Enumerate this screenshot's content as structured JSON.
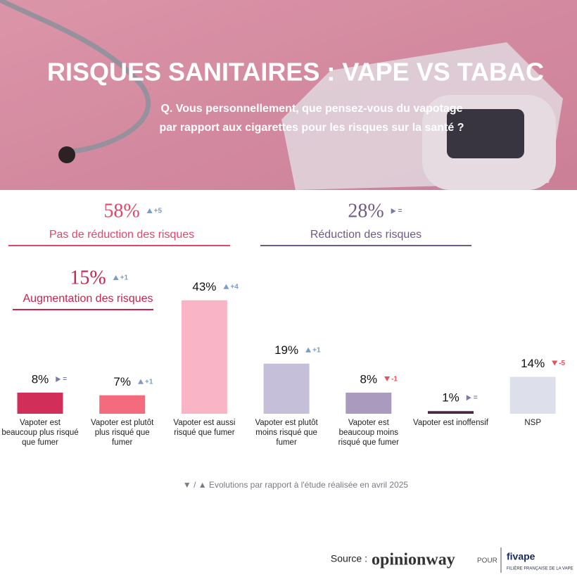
{
  "chart_data": {
    "type": "bar",
    "title": "RISQUES SANITAIRES : VAPE VS TABAC",
    "subtitle": [
      "Q. Vous personnellement, que pensez-vous du vapotage",
      "par rapport aux cigarettes pour les risques sur la santé ?"
    ],
    "groups": [
      {
        "value": 58,
        "label": "58%",
        "name": "Pas de réduction des risques",
        "evolution": "+5",
        "color": "#e0476a"
      },
      {
        "value": 28,
        "label": "28%",
        "name": "Réduction des risques",
        "evolution": "=",
        "color": "#6f5a86"
      },
      {
        "value": 15,
        "label": "15%",
        "name": "Augmentation des risques",
        "evolution": "+1",
        "color": "#c6254f"
      }
    ],
    "categories": [
      "Vapoter est beaucoup plus risqué que fumer",
      "Vapoter est plutôt plus risqué que fumer",
      "Vapoter est aussi risqué que fumer",
      "Vapoter est plutôt moins risqué que fumer",
      "Vapoter est beaucoup moins risqué que fumer",
      "Vapoter est inoffensif",
      "NSP"
    ],
    "values": [
      8,
      7,
      43,
      19,
      8,
      1,
      14
    ],
    "value_labels": [
      "8%",
      "7%",
      "43%",
      "19%",
      "8%",
      "1%",
      "14%"
    ],
    "evolutions": [
      "=",
      "+1",
      "+4",
      "+1",
      "-1",
      "=",
      "-5"
    ],
    "colors": [
      "#d12f5a",
      "#f36b7d",
      "#f9b4c5",
      "#c6bfda",
      "#a99abe",
      "#4b2546",
      "#dde0ea"
    ],
    "note": "▼ / ▲ Evolutions par rapport à l'étude réalisée en avril 2025",
    "source": {
      "label": "Source :",
      "brand": "opinionway",
      "connector": "POUR",
      "partner": "fivape",
      "partner_tagline": "FILIÈRE FRANÇAISE DE LA VAPE"
    }
  }
}
